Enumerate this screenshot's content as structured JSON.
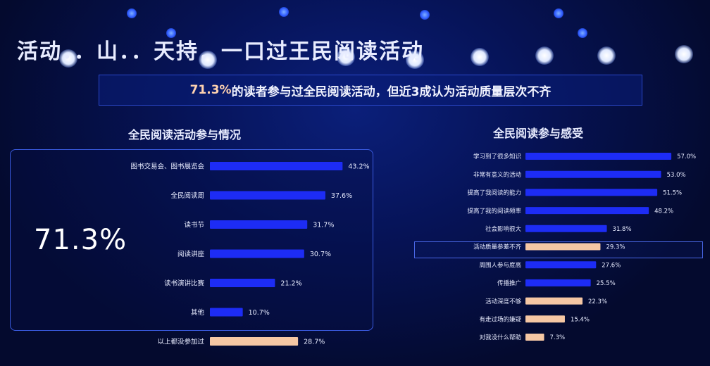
{
  "slide": {
    "title": "活动．．山．．天持．一口过王民阅读活动",
    "headline_highlight": "71.3%",
    "headline_rest": "的读者参与过全民阅读活动，但近3成认为活动质量层次不齐",
    "big_percent": "71.3%"
  },
  "colors": {
    "background": "#040a2e",
    "bar_blue": "#1d2cf5",
    "bar_peach": "#f5c7a4",
    "text": "#e8ecff"
  },
  "chart_data": [
    {
      "type": "bar",
      "orientation": "horizontal",
      "title": "全民阅读活动参与情况",
      "categories": [
        "图书交易会、图书展览会",
        "全民阅读周",
        "读书节",
        "阅读讲座",
        "读书演讲比赛",
        "其他",
        "以上都没参加过"
      ],
      "values": [
        43.2,
        37.6,
        31.7,
        30.7,
        21.2,
        10.7,
        28.7
      ],
      "value_labels": [
        "43.2%",
        "37.6%",
        "31.7%",
        "30.7%",
        "21.2%",
        "10.7%",
        "28.7%"
      ],
      "highlight": [
        false,
        false,
        false,
        false,
        false,
        false,
        true
      ],
      "xlim": [
        0,
        50
      ],
      "grid": false
    },
    {
      "type": "bar",
      "orientation": "horizontal",
      "title": "全民阅读参与感受",
      "categories": [
        "学习到了很多知识",
        "非常有意义的活动",
        "提高了我阅读的能力",
        "提高了我的阅读频率",
        "社会影响很大",
        "活动质量参差不齐",
        "周围人参与度高",
        "传播推广",
        "活动深度不够",
        "有走过场的嫌疑",
        "对我没什么帮助"
      ],
      "values": [
        57.0,
        53.0,
        51.5,
        48.2,
        31.8,
        29.3,
        27.6,
        25.5,
        22.3,
        15.4,
        7.3
      ],
      "value_labels": [
        "57.0%",
        "53.0%",
        "51.5%",
        "48.2%",
        "31.8%",
        "29.3%",
        "27.6%",
        "25.5%",
        "22.3%",
        "15.4%",
        "7.3%"
      ],
      "highlight": [
        false,
        false,
        false,
        false,
        false,
        true,
        false,
        false,
        true,
        true,
        true
      ],
      "xlim": [
        0,
        60
      ],
      "grid": false
    }
  ]
}
